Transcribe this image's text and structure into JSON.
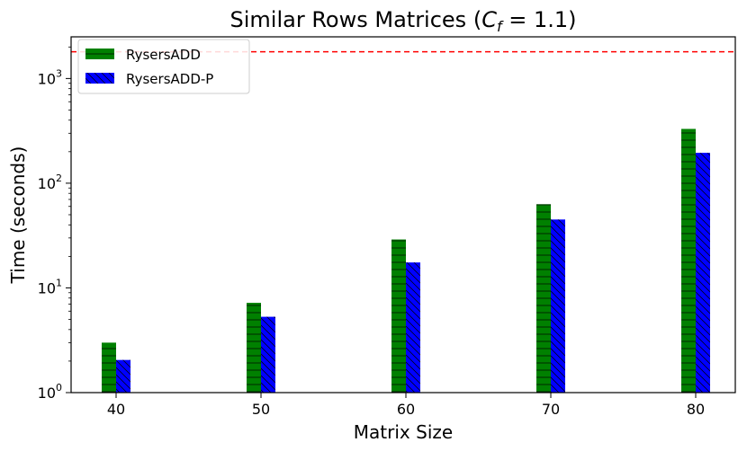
{
  "chart_data": {
    "type": "bar",
    "title_main": "Similar Rows Matrices (",
    "title_var": "C",
    "title_sub": "f",
    "title_tail": " = 1.1)",
    "xlabel": "Matrix Size",
    "ylabel": "Time (seconds)",
    "y_scale": "log",
    "ylim": [
      1,
      2500
    ],
    "y_ticks": [
      {
        "value": 1,
        "base": "10",
        "exp": "0"
      },
      {
        "value": 10,
        "base": "10",
        "exp": "1"
      },
      {
        "value": 100,
        "base": "10",
        "exp": "2"
      },
      {
        "value": 1000,
        "base": "10",
        "exp": "3"
      }
    ],
    "categories": [
      "40",
      "50",
      "60",
      "70",
      "80"
    ],
    "series": [
      {
        "name": "RysersADD",
        "values": [
          3.0,
          7.2,
          29,
          63,
          330
        ],
        "color": "#008000",
        "hatch": "horizontal"
      },
      {
        "name": "RysersADD-P",
        "values": [
          2.05,
          5.3,
          17.5,
          45,
          195
        ],
        "color": "#0000ff",
        "hatch": "diagonal"
      }
    ],
    "reference_line": {
      "value": 1800,
      "color": "#ff0000",
      "style": "dashed"
    },
    "legend_position": "top-left",
    "grid": false
  }
}
